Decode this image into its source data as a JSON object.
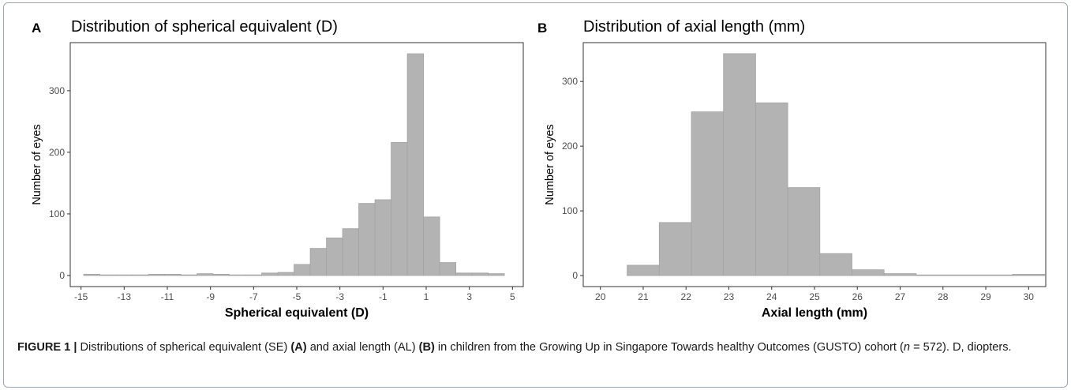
{
  "panels": [
    {
      "letter": "A",
      "title": "Distribution of spherical equivalent (D)"
    },
    {
      "letter": "B",
      "title": "Distribution of axial length (mm)"
    }
  ],
  "chart_data": [
    {
      "type": "bar",
      "subtype": "histogram",
      "title": "Distribution of spherical equivalent (D)",
      "xlabel": "Spherical equivalent (D)",
      "ylabel": "Number of eyes",
      "bin_width": 0.75,
      "bin_start": -14.875,
      "counts": [
        2,
        1,
        1,
        1,
        2,
        2,
        1,
        3,
        2,
        1,
        1,
        4,
        5,
        18,
        44,
        61,
        76,
        117,
        123,
        216,
        360,
        95,
        21,
        4,
        4,
        3
      ],
      "xlim": [
        -15.5,
        5.5
      ],
      "ylim": [
        -18,
        378
      ],
      "xticks": [
        -15,
        -13,
        -11,
        -9,
        -7,
        -5,
        -3,
        -1,
        1,
        3,
        5
      ],
      "yticks": [
        0,
        100,
        200,
        300
      ],
      "bar_color": "#b3b3b3",
      "bar_edge": "#a3a3a3",
      "grid": false
    },
    {
      "type": "bar",
      "subtype": "histogram",
      "title": "Distribution of axial length (mm)",
      "xlabel": "Axial length (mm)",
      "ylabel": "Number of eyes",
      "bin_width": 0.75,
      "bin_start": 20.625,
      "counts": [
        16,
        82,
        253,
        343,
        267,
        136,
        34,
        9,
        3,
        1,
        1,
        1,
        2
      ],
      "xlim": [
        19.6,
        30.4
      ],
      "ylim": [
        -17,
        360
      ],
      "xticks": [
        20,
        21,
        22,
        23,
        24,
        25,
        26,
        27,
        28,
        29,
        30
      ],
      "yticks": [
        0,
        100,
        200,
        300
      ],
      "bar_color": "#b3b3b3",
      "bar_edge": "#a3a3a3",
      "grid": false
    }
  ],
  "caption": {
    "label": "FIGURE 1 |",
    "text_1": " Distributions of spherical equivalent (SE) ",
    "ref_a": "(A)",
    "text_2": " and axial length (AL) ",
    "ref_b": "(B)",
    "text_3": " in children from the Growing Up in Singapore Towards healthy Outcomes (GUSTO) cohort (",
    "n_var": "n",
    "text_4": " = 572). D, diopters."
  }
}
